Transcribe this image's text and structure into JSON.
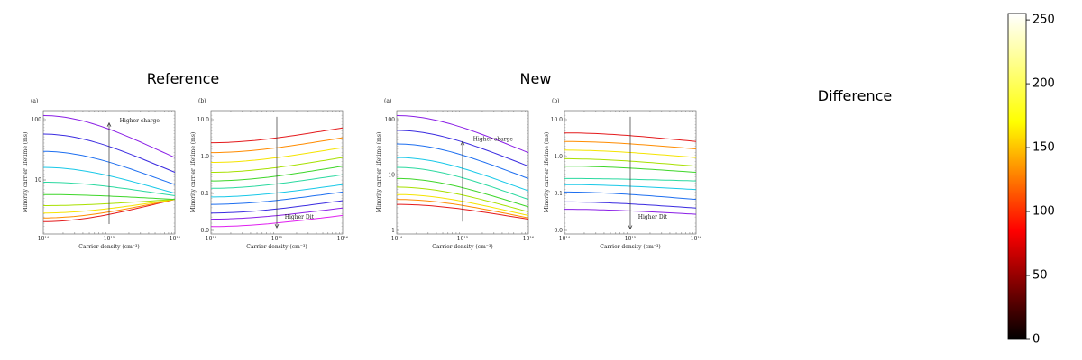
{
  "reference": {
    "title": "Reference",
    "panels": [
      {
        "label": "(a)",
        "annotation": "Higher charge",
        "y_label": "Minority carrier lifetime (ms)",
        "x_label": "Carrier density (cm⁻³)",
        "xticks": [
          "10¹⁴",
          "10¹⁵",
          "10¹⁶"
        ],
        "yticks": [
          "100",
          "10"
        ]
      },
      {
        "label": "(b)",
        "annotation": "Higher Dit",
        "y_label": "Minority carrier lifetime (ms)",
        "x_label": "Carrier density (cm⁻³)",
        "xticks": [
          "10¹⁴",
          "10¹⁵",
          "10¹⁶"
        ],
        "yticks": [
          "10.0",
          "1.0",
          "0.1",
          "0.0"
        ]
      }
    ]
  },
  "new": {
    "title": "New",
    "panels": [
      {
        "label": "(a)",
        "annotation": "Higher charge",
        "y_label": "Minority carrier lifetime (ms)",
        "x_label": "Carrier density (cm⁻³)",
        "xticks": [
          "10¹⁴",
          "10¹⁵",
          "10¹⁶"
        ],
        "yticks": [
          "100",
          "10",
          "1"
        ]
      },
      {
        "label": "(b)",
        "annotation": "Higher Dit",
        "y_label": "Minority carrier lifetime (ms)",
        "x_label": "Carrier density (cm⁻³)",
        "xticks": [
          "10¹⁴",
          "10¹⁵",
          "10¹⁶"
        ],
        "yticks": [
          "10.0",
          "1.0",
          "0.1",
          "0.0"
        ]
      }
    ]
  },
  "difference": {
    "title": "Difference"
  },
  "colorbar": {
    "type": "colorbar",
    "ylim": [
      0,
      255
    ],
    "yticks": [
      0,
      50,
      100,
      150,
      200,
      250
    ],
    "colors": [
      "#000000",
      "#ff0000",
      "#ffff00",
      "#ffffff"
    ]
  }
}
